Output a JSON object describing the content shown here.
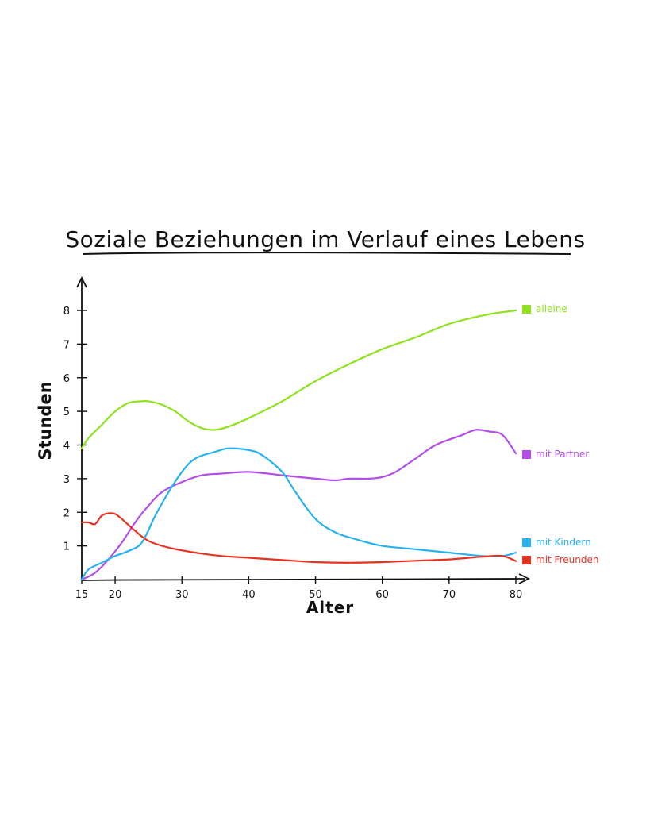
{
  "chart_data": {
    "type": "line",
    "title": "Soziale Beziehungen im Verlauf eines Lebens",
    "xlabel": "Alter",
    "ylabel": "Stunden",
    "xlim": [
      15,
      80
    ],
    "ylim": [
      0,
      8
    ],
    "x_ticks": [
      "15",
      "20",
      "30",
      "40",
      "50",
      "60",
      "70",
      "80"
    ],
    "y_ticks": [
      "1",
      "2",
      "3",
      "4",
      "5",
      "6",
      "7",
      "8"
    ],
    "grid": false,
    "legend_position": "right",
    "series": [
      {
        "name": "alleine",
        "color": "#8fe31c",
        "x": [
          15,
          16,
          18,
          20,
          22,
          24,
          25,
          27,
          29,
          31,
          33,
          35,
          37,
          40,
          45,
          50,
          55,
          60,
          65,
          70,
          75,
          78,
          80
        ],
        "values": [
          3.9,
          4.2,
          4.6,
          5.0,
          5.25,
          5.3,
          5.3,
          5.2,
          5.0,
          4.7,
          4.5,
          4.45,
          4.55,
          4.8,
          5.3,
          5.9,
          6.4,
          6.85,
          7.2,
          7.6,
          7.85,
          7.95,
          8.0
        ]
      },
      {
        "name": "mit Partner",
        "color": "#b24de8",
        "x": [
          15,
          17,
          19,
          21,
          23,
          25,
          27,
          30,
          33,
          36,
          40,
          45,
          50,
          53,
          55,
          58,
          60,
          62,
          65,
          68,
          72,
          74,
          76,
          78,
          80
        ],
        "values": [
          0.0,
          0.2,
          0.6,
          1.1,
          1.7,
          2.2,
          2.6,
          2.9,
          3.1,
          3.15,
          3.2,
          3.1,
          3.0,
          2.95,
          3.0,
          3.0,
          3.05,
          3.2,
          3.6,
          4.0,
          4.3,
          4.45,
          4.4,
          4.3,
          3.75
        ]
      },
      {
        "name": "mit Kindern",
        "color": "#26b2f0",
        "x": [
          15,
          16,
          18,
          20,
          22,
          24,
          26,
          28,
          30,
          32,
          35,
          37,
          40,
          42,
          45,
          47,
          50,
          53,
          56,
          60,
          65,
          70,
          75,
          78,
          80
        ],
        "values": [
          0.0,
          0.3,
          0.5,
          0.7,
          0.85,
          1.1,
          1.9,
          2.6,
          3.2,
          3.6,
          3.8,
          3.9,
          3.85,
          3.7,
          3.2,
          2.6,
          1.8,
          1.4,
          1.2,
          1.0,
          0.9,
          0.8,
          0.7,
          0.7,
          0.8
        ]
      },
      {
        "name": "mit Freunden",
        "color": "#e8311f",
        "x": [
          15,
          16,
          17,
          18,
          19,
          20,
          21,
          23,
          25,
          28,
          32,
          36,
          40,
          45,
          50,
          55,
          60,
          65,
          70,
          75,
          78,
          80
        ],
        "values": [
          1.7,
          1.7,
          1.65,
          1.9,
          1.97,
          1.95,
          1.8,
          1.45,
          1.15,
          0.95,
          0.8,
          0.7,
          0.65,
          0.58,
          0.52,
          0.5,
          0.52,
          0.56,
          0.6,
          0.68,
          0.7,
          0.55
        ]
      }
    ]
  }
}
